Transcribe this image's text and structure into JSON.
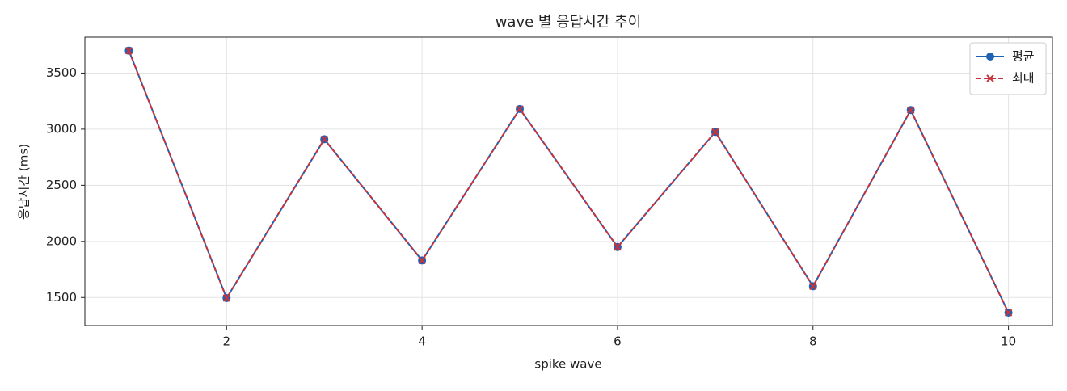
{
  "chart_data": {
    "type": "line",
    "title": "wave 별 응답시간 추이",
    "xlabel": "spike wave",
    "ylabel": "응답시간 (ms)",
    "x": [
      1,
      2,
      3,
      4,
      5,
      6,
      7,
      8,
      9,
      10
    ],
    "series": [
      {
        "name": "평균",
        "color": "#1f62b5",
        "marker": "o",
        "linestyle": "solid",
        "values": [
          3700,
          1495,
          2910,
          1830,
          3180,
          1950,
          2975,
          1600,
          3170,
          1365
        ]
      },
      {
        "name": "최대",
        "color": "#c8333a",
        "marker": "x",
        "linestyle": "dashed",
        "values": [
          3700,
          1495,
          2910,
          1830,
          3180,
          1950,
          2975,
          1600,
          3170,
          1365
        ]
      }
    ],
    "xlim": [
      0.55,
      10.45
    ],
    "xticks": [
      2,
      4,
      6,
      8,
      10
    ],
    "ylim": [
      1250,
      3820
    ],
    "yticks": [
      1500,
      2000,
      2500,
      3000,
      3500
    ],
    "grid": true,
    "legend": "upper right"
  }
}
